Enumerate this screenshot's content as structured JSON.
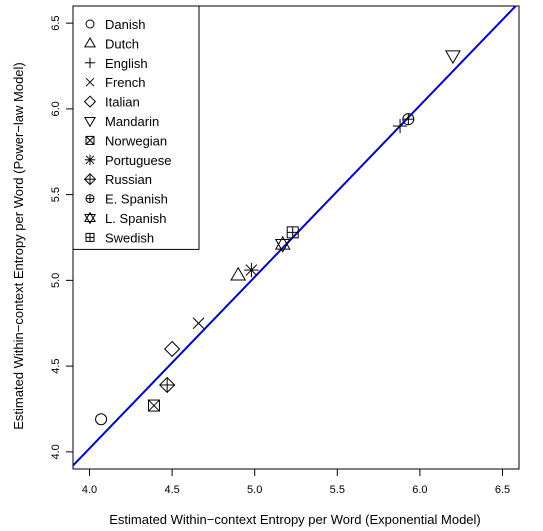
{
  "chart_data": {
    "type": "scatter",
    "xlabel": "Estimated Within−context Entropy per Word (Exponential Model)",
    "ylabel": "Estimated Within−context Entropy per Word (Power−law Model)",
    "xlim": [
      3.9,
      6.6
    ],
    "ylim": [
      3.9,
      6.6
    ],
    "x_ticks": [
      4.0,
      4.5,
      5.0,
      5.5,
      6.0,
      6.5
    ],
    "y_ticks": [
      4.0,
      4.5,
      5.0,
      5.5,
      6.0,
      6.5
    ],
    "x_tick_labels": [
      "4.0",
      "4.5",
      "5.0",
      "5.5",
      "6.0",
      "6.5"
    ],
    "y_tick_labels": [
      "4.0",
      "4.5",
      "5.0",
      "5.5",
      "6.0",
      "6.5"
    ],
    "grid": false,
    "legend_position": "top-left",
    "fit_line": {
      "color": "#0000cc",
      "x": [
        3.9,
        6.6
      ],
      "y": [
        3.92,
        6.62
      ]
    },
    "points": [
      {
        "name": "Danish",
        "marker": "circle",
        "x": 4.07,
        "y": 4.19
      },
      {
        "name": "Dutch",
        "marker": "triangle-up",
        "x": 4.9,
        "y": 5.03
      },
      {
        "name": "English",
        "marker": "plus",
        "x": 5.88,
        "y": 5.9
      },
      {
        "name": "French",
        "marker": "cross",
        "x": 4.66,
        "y": 4.75
      },
      {
        "name": "Italian",
        "marker": "diamond",
        "x": 4.5,
        "y": 4.6
      },
      {
        "name": "Mandarin",
        "marker": "triangle-down",
        "x": 6.2,
        "y": 6.31
      },
      {
        "name": "Norwegian",
        "marker": "square-x",
        "x": 4.39,
        "y": 4.27
      },
      {
        "name": "Portuguese",
        "marker": "asterisk",
        "x": 4.98,
        "y": 5.06
      },
      {
        "name": "Russian",
        "marker": "diamond-plus",
        "x": 4.47,
        "y": 4.39
      },
      {
        "name": "E. Spanish",
        "marker": "circle-plus",
        "x": 5.93,
        "y": 5.94
      },
      {
        "name": "L. Spanish",
        "marker": "star-of-david",
        "x": 5.17,
        "y": 5.21
      },
      {
        "name": "Swedish",
        "marker": "square-plus",
        "x": 5.23,
        "y": 5.28
      }
    ],
    "legend": [
      {
        "label": "Danish",
        "marker": "circle"
      },
      {
        "label": "Dutch",
        "marker": "triangle-up"
      },
      {
        "label": "English",
        "marker": "plus"
      },
      {
        "label": "French",
        "marker": "cross"
      },
      {
        "label": "Italian",
        "marker": "diamond"
      },
      {
        "label": "Mandarin",
        "marker": "triangle-down"
      },
      {
        "label": "Norwegian",
        "marker": "square-x"
      },
      {
        "label": "Portuguese",
        "marker": "asterisk"
      },
      {
        "label": "Russian",
        "marker": "diamond-plus"
      },
      {
        "label": "E. Spanish",
        "marker": "circle-plus"
      },
      {
        "label": "L. Spanish",
        "marker": "star-of-david"
      },
      {
        "label": "Swedish",
        "marker": "square-plus"
      }
    ]
  }
}
